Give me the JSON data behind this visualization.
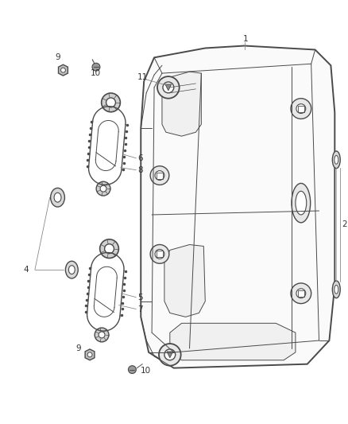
{
  "background_color": "#ffffff",
  "line_color": "#4a4a4a",
  "light_color": "#888888",
  "label_color": "#333333",
  "figsize": [
    4.38,
    5.33
  ],
  "dpi": 100
}
